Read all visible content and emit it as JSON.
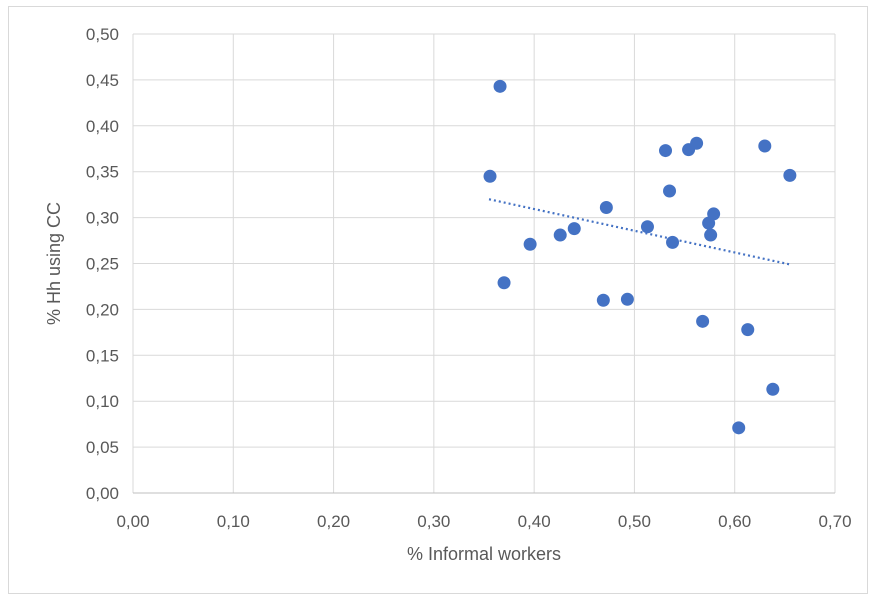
{
  "chart_data": {
    "type": "scatter",
    "title": "",
    "xlabel": "% Informal workers",
    "ylabel": "% Hh using CC",
    "xlim": [
      0,
      0.7
    ],
    "ylim": [
      0,
      0.5
    ],
    "xticks": [
      "0,00",
      "0,10",
      "0,20",
      "0,30",
      "0,40",
      "0,50",
      "0,60",
      "0,70"
    ],
    "yticks": [
      "0,00",
      "0,05",
      "0,10",
      "0,15",
      "0,20",
      "0,25",
      "0,30",
      "0,35",
      "0,40",
      "0,45",
      "0,50"
    ],
    "grid": true,
    "legend": "none",
    "trendline": {
      "style": "dotted",
      "x": [
        0.355,
        0.655
      ],
      "y": [
        0.32,
        0.249
      ]
    },
    "points": [
      {
        "x": 0.356,
        "y": 0.345
      },
      {
        "x": 0.366,
        "y": 0.443
      },
      {
        "x": 0.37,
        "y": 0.229
      },
      {
        "x": 0.396,
        "y": 0.271
      },
      {
        "x": 0.426,
        "y": 0.281
      },
      {
        "x": 0.44,
        "y": 0.288
      },
      {
        "x": 0.469,
        "y": 0.21
      },
      {
        "x": 0.472,
        "y": 0.311
      },
      {
        "x": 0.493,
        "y": 0.211
      },
      {
        "x": 0.513,
        "y": 0.29
      },
      {
        "x": 0.531,
        "y": 0.373
      },
      {
        "x": 0.535,
        "y": 0.329
      },
      {
        "x": 0.538,
        "y": 0.273
      },
      {
        "x": 0.554,
        "y": 0.374
      },
      {
        "x": 0.562,
        "y": 0.381
      },
      {
        "x": 0.568,
        "y": 0.187
      },
      {
        "x": 0.574,
        "y": 0.294
      },
      {
        "x": 0.576,
        "y": 0.281
      },
      {
        "x": 0.579,
        "y": 0.304
      },
      {
        "x": 0.604,
        "y": 0.071
      },
      {
        "x": 0.613,
        "y": 0.178
      },
      {
        "x": 0.63,
        "y": 0.378
      },
      {
        "x": 0.638,
        "y": 0.113
      },
      {
        "x": 0.655,
        "y": 0.346
      }
    ],
    "colors": {
      "marker": "#4472c4",
      "trendline": "#4472c4",
      "grid": "#d9d9d9",
      "axis": "#bfbfbf"
    }
  }
}
